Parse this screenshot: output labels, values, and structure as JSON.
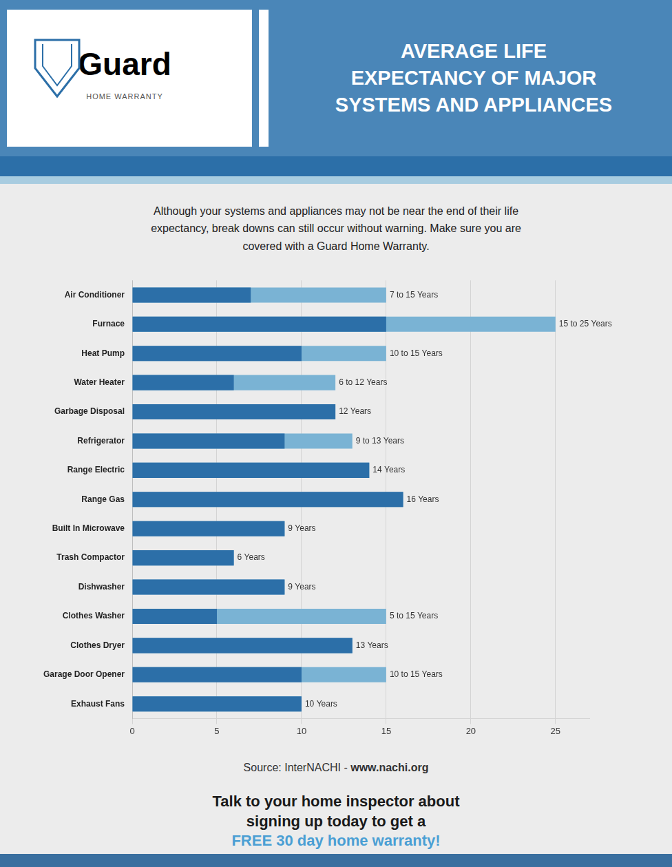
{
  "logo": [
    "Guard",
    "HOME WARRANTY"
  ],
  "intro": "Although your systems and appliances may not be near the end of their life\nexpectancy, break downs can still occur without warning. Make sure you are\ncovered with a Guard Home Warranty.",
  "source": [
    "Source: InterNACHI - ",
    "www.nachi.org"
  ],
  "call_to_action": [
    "Talk to your home inspector about",
    "signing up today to get a",
    "FREE 30 day home warranty!"
  ],
  "chart_data": {
    "type": "bar",
    "orientation": "horizontal",
    "title": [
      "AVERAGE LIFE",
      "EXPECTANCY OF MAJOR",
      "SYSTEMS AND APPLIANCES"
    ],
    "categories": [
      "Air Conditioner",
      "Furnace",
      "Heat Pump",
      "Water Heater",
      "Garbage Disposal",
      "Refrigerator",
      "Range Electric",
      "Range Gas",
      "Built In Microwave",
      "Trash Compactor",
      "Dishwasher",
      "Clothes Washer",
      "Clothes Dryer",
      "Garage Door Opener",
      "Exhaust Fans"
    ],
    "series": [
      {
        "color": "#2c6fa8",
        "values": [
          7,
          15,
          10,
          6,
          12,
          9,
          14,
          16,
          9,
          6,
          9,
          5,
          13,
          10,
          10
        ]
      },
      {
        "color": "#7ab3d4",
        "values": [
          15,
          25,
          15,
          12,
          12,
          13,
          14,
          16,
          9,
          6,
          9,
          15,
          13,
          15,
          10
        ]
      }
    ],
    "annotations": [
      "7 to 15 Years",
      "15 to 25 Years",
      "10 to 15 Years",
      "6 to 12 Years",
      "12 Years",
      "9 to 13 Years",
      "14 Years",
      "16 Years",
      "9 Years",
      "6 Years",
      "9 Years",
      "5 to 15 Years",
      "13 Years",
      "10 to 15 Years",
      "10 Years"
    ],
    "xlim": [
      0,
      27
    ],
    "xticks": [
      0,
      5,
      10,
      15,
      20,
      25
    ],
    "grid": true
  }
}
